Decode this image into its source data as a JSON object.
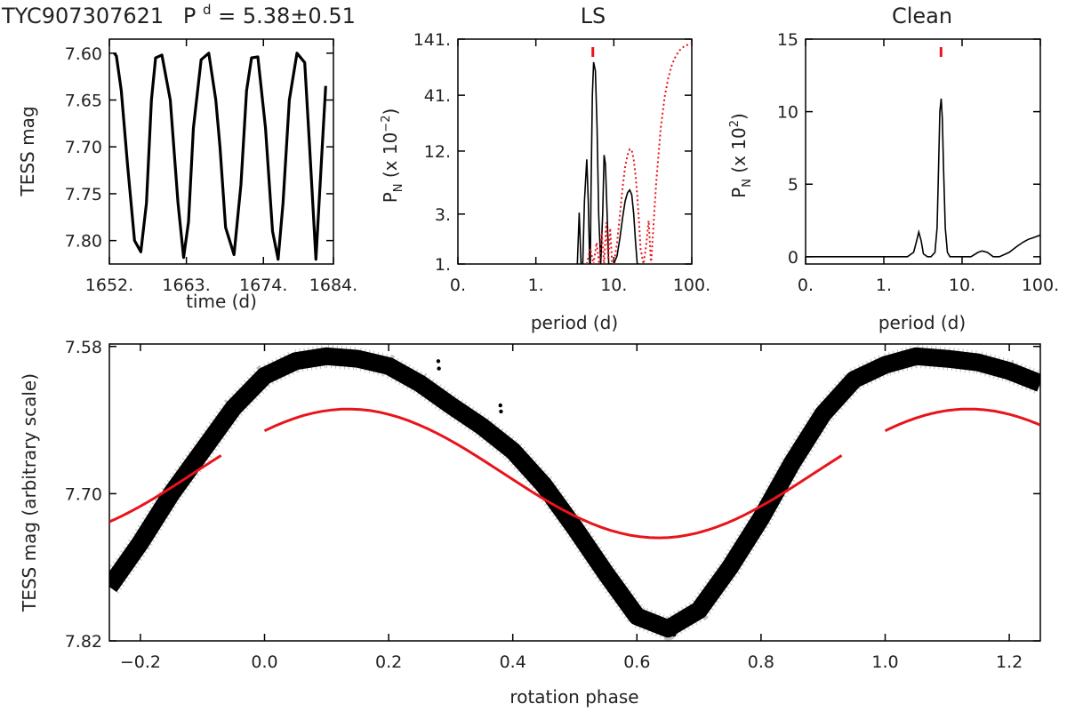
{
  "header": {
    "star": "TYC907307621",
    "period_label": "P",
    "period_sup": "d",
    "period_value": "= 5.38±0.51"
  },
  "colors": {
    "data": "#000000",
    "fit": "#e8141b",
    "axis": "#000000"
  },
  "chart_data": [
    {
      "name": "light-curve",
      "type": "line",
      "title": "",
      "xlabel": "time (d)",
      "ylabel": "TESS mag",
      "xlim": [
        1652,
        1684
      ],
      "ylim": [
        7.825,
        7.585
      ],
      "x_ticks": [
        1652,
        1663,
        1674,
        1684
      ],
      "x_tick_labels": [
        "1652.",
        "1663.",
        "1674.",
        "1684."
      ],
      "y_ticks": [
        7.6,
        7.65,
        7.7,
        7.75,
        7.8
      ],
      "y_tick_labels": [
        "7.60",
        "7.65",
        "7.70",
        "7.75",
        "7.80"
      ],
      "series": [
        {
          "name": "TESS light curve",
          "x": [
            1652.7,
            1653.0,
            1653.7,
            1654.6,
            1655.6,
            1656.5,
            1657.3,
            1658.0,
            1658.6,
            1659.5,
            1660.7,
            1661.8,
            1662.6,
            1663.3,
            1664.0,
            1665.1,
            1666.2,
            1667.2,
            1667.8,
            1668.6,
            1669.8,
            1670.8,
            1671.6,
            1672.3,
            1673.2,
            1674.3,
            1675.3,
            1676.1,
            1676.8,
            1677.7,
            1678.8,
            1679.9,
            1680.6,
            1681.5,
            1682.4,
            1682.9
          ],
          "y": [
            7.6,
            7.603,
            7.64,
            7.72,
            7.8,
            7.812,
            7.76,
            7.65,
            7.605,
            7.602,
            7.65,
            7.76,
            7.818,
            7.78,
            7.68,
            7.607,
            7.6,
            7.65,
            7.7,
            7.786,
            7.815,
            7.74,
            7.64,
            7.605,
            7.604,
            7.68,
            7.79,
            7.82,
            7.76,
            7.65,
            7.6,
            7.61,
            7.7,
            7.82,
            7.7,
            7.635
          ]
        }
      ]
    },
    {
      "name": "LS periodogram",
      "type": "line",
      "title": "LS",
      "xlabel": "period (d)",
      "ylabel_main": "P",
      "ylabel_sub": "N",
      "ylabel_rest": " (x 10",
      "ylabel_exp": "−2",
      "ylabel_close": ")",
      "x_scale": "log",
      "y_scale": "log",
      "xlim": [
        0.1,
        100
      ],
      "ylim": [
        1,
        141
      ],
      "x_ticks": [
        0.1,
        1,
        10,
        100
      ],
      "x_tick_labels": [
        "0.",
        "1.",
        "10.",
        "100."
      ],
      "y_ticks": [
        1,
        3,
        12,
        41,
        141
      ],
      "y_tick_labels": [
        "1.",
        "3.",
        "12.",
        "41.",
        "141."
      ],
      "peak_marker_period": 5.38,
      "series": [
        {
          "name": "power",
          "style": "solid",
          "x": [
            3.4,
            3.6,
            3.8,
            4.0,
            4.2,
            4.5,
            4.7,
            4.9,
            5.0,
            5.1,
            5.3,
            5.5,
            5.8,
            6.1,
            6.4,
            6.8,
            7.2,
            7.5,
            7.8,
            8.2,
            8.6,
            9.0,
            10.0,
            11.0,
            12.0,
            13.0,
            14.0,
            15.0,
            16.0,
            17.0,
            18.0,
            19.0,
            20.0,
            21.0
          ],
          "y": [
            1.0,
            3.1,
            1.0,
            1.0,
            4.0,
            10.0,
            4.0,
            1.0,
            1.0,
            5.0,
            41.0,
            85.0,
            70.0,
            20.0,
            3.0,
            1.0,
            3.0,
            11.0,
            9.0,
            3.0,
            1.0,
            1.0,
            1.0,
            1.2,
            1.8,
            2.8,
            4.0,
            4.8,
            5.1,
            4.6,
            3.0,
            1.6,
            1.0,
            1.0
          ]
        },
        {
          "name": "window",
          "style": "dotted",
          "x": [
            4.5,
            5.0,
            5.5,
            6.0,
            6.5,
            7.0,
            7.5,
            8.0,
            8.5,
            9.0,
            9.5,
            10.0,
            11.0,
            12.0,
            13.0,
            14.0,
            15.0,
            16.0,
            17.0,
            18.0,
            19.0,
            20.0,
            21.0,
            22.0,
            24.0,
            26.0,
            28.0,
            30.0,
            35.0,
            40.0,
            45.0,
            50.0,
            55.0,
            60.0,
            65.0,
            70.0,
            75.0,
            80.0,
            85.0,
            90.0,
            95.0,
            100.0
          ],
          "y": [
            1.0,
            1.4,
            1.0,
            1.6,
            1.0,
            2.0,
            1.0,
            2.5,
            1.1,
            2.2,
            1.0,
            1.0,
            1.6,
            3.0,
            5.5,
            8.5,
            11.0,
            12.5,
            12.2,
            10.0,
            7.0,
            4.5,
            2.6,
            1.4,
            1.0,
            1.5,
            2.6,
            1.0,
            6.0,
            20.0,
            40.0,
            60.0,
            78.0,
            92.0,
            102.0,
            110.0,
            116.0,
            120.0,
            123.0,
            125.0,
            126.0,
            127.0
          ]
        }
      ]
    },
    {
      "name": "Clean periodogram",
      "type": "line",
      "title": "Clean",
      "xlabel": "period (d)",
      "ylabel_main": "P",
      "ylabel_sub": "N",
      "ylabel_rest": " (x 10",
      "ylabel_exp": "2",
      "ylabel_close": ")",
      "x_scale": "log",
      "xlim": [
        0.1,
        100
      ],
      "ylim": [
        -0.5,
        15
      ],
      "x_ticks": [
        0.1,
        1,
        10,
        100
      ],
      "x_tick_labels": [
        "0.",
        "1.",
        "10.",
        "100."
      ],
      "y_ticks": [
        0,
        5,
        10,
        15
      ],
      "y_tick_labels": [
        "0",
        "5",
        "10",
        "15"
      ],
      "peak_marker_period": 5.38,
      "series": [
        {
          "name": "clean power",
          "style": "solid",
          "x": [
            0.1,
            1.0,
            2.0,
            2.4,
            2.6,
            2.8,
            3.0,
            3.2,
            3.6,
            4.0,
            4.5,
            4.8,
            5.0,
            5.2,
            5.4,
            5.6,
            5.8,
            6.1,
            6.5,
            7.0,
            8.0,
            10.0,
            13.0,
            16.0,
            18.0,
            21.0,
            25.0,
            30.0,
            40.0,
            50.0,
            60.0,
            70.0,
            80.0,
            90.0,
            100.0
          ],
          "y": [
            0,
            0,
            0,
            0.3,
            1.0,
            1.7,
            1.1,
            0.2,
            0,
            0,
            0.3,
            2.0,
            6.0,
            10.0,
            10.9,
            9.5,
            6.0,
            2.0,
            0.3,
            0,
            0,
            0,
            0,
            0.3,
            0.4,
            0.3,
            0,
            0,
            0.3,
            0.7,
            1.0,
            1.2,
            1.3,
            1.4,
            1.5
          ]
        }
      ]
    },
    {
      "name": "phased-light-curve",
      "type": "scatter",
      "title": "",
      "xlabel": "rotation phase",
      "ylabel": "TESS mag (arbitrary scale)",
      "xlim": [
        -0.25,
        1.25
      ],
      "ylim": [
        7.82,
        7.578
      ],
      "x_ticks": [
        -0.2,
        0.0,
        0.2,
        0.4,
        0.6,
        0.8,
        1.0,
        1.2
      ],
      "x_tick_labels": [
        "−0.2",
        "0.0",
        "0.2",
        "0.4",
        "0.6",
        "0.8",
        "1.0",
        "1.2"
      ],
      "y_ticks": [
        7.58,
        7.7,
        7.82
      ],
      "y_tick_labels": [
        "7.58",
        "7.70",
        "7.82"
      ],
      "series": [
        {
          "name": "phased data",
          "x": [
            -0.25,
            -0.2,
            -0.15,
            -0.1,
            -0.05,
            0.0,
            0.05,
            0.1,
            0.15,
            0.2,
            0.25,
            0.3,
            0.35,
            0.4,
            0.45,
            0.5,
            0.55,
            0.6,
            0.65,
            0.7,
            0.75,
            0.8,
            0.85,
            0.9,
            0.95,
            1.0,
            1.05,
            1.1,
            1.15,
            1.2,
            1.25
          ],
          "y": [
            7.776,
            7.74,
            7.7,
            7.665,
            7.63,
            7.604,
            7.592,
            7.588,
            7.59,
            7.596,
            7.61,
            7.628,
            7.645,
            7.665,
            7.693,
            7.728,
            7.765,
            7.8,
            7.81,
            7.795,
            7.76,
            7.72,
            7.675,
            7.635,
            7.607,
            7.595,
            7.588,
            7.59,
            7.593,
            7.6,
            7.61
          ]
        },
        {
          "name": "sinusoidal fit",
          "style": "red",
          "segments": [
            [
              -0.25,
              -0.07
            ],
            [
              0.0,
              0.93
            ],
            [
              1.0,
              1.25
            ]
          ],
          "fit_phase_max": 0.135,
          "fit_mean": 7.6835,
          "fit_amplitude": 0.0525
        }
      ]
    }
  ]
}
